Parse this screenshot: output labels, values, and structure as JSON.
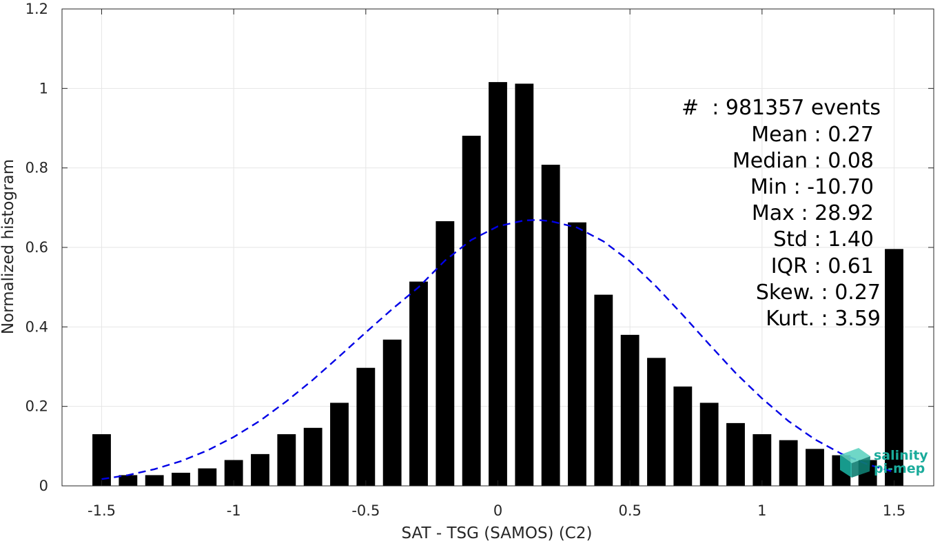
{
  "chart_data": {
    "type": "bar",
    "xlabel": "SAT - TSG (SAMOS) (C2)",
    "ylabel": "Normalized histogram",
    "xlim": [
      -1.65,
      1.65
    ],
    "ylim": [
      0,
      1.2
    ],
    "grid": true,
    "x_ticks": [
      -1.5,
      -1,
      -0.5,
      0,
      0.5,
      1,
      1.5
    ],
    "x_tick_labels": [
      "-1.5",
      "-1",
      "-0.5",
      "0",
      "0.5",
      "1",
      "1.5"
    ],
    "y_ticks": [
      0,
      0.2,
      0.4,
      0.6,
      0.8,
      1,
      1.2
    ],
    "y_tick_labels": [
      "0",
      "0.2",
      "0.4",
      "0.6",
      "0.8",
      "1",
      "1.2"
    ],
    "bar_width": 0.07,
    "categories": [
      -1.5,
      -1.4,
      -1.3,
      -1.2,
      -1.1,
      -1.0,
      -0.9,
      -0.8,
      -0.7,
      -0.6,
      -0.5,
      -0.4,
      -0.3,
      -0.2,
      -0.1,
      0.0,
      0.1,
      0.2,
      0.3,
      0.4,
      0.5,
      0.6,
      0.7,
      0.8,
      0.9,
      1.0,
      1.1,
      1.2,
      1.3,
      1.4,
      1.5
    ],
    "values": [
      0.13,
      0.027,
      0.027,
      0.033,
      0.044,
      0.065,
      0.08,
      0.13,
      0.146,
      0.209,
      0.297,
      0.368,
      0.514,
      0.666,
      0.881,
      1.016,
      1.012,
      0.808,
      0.663,
      0.481,
      0.38,
      0.322,
      0.25,
      0.209,
      0.158,
      0.13,
      0.115,
      0.093,
      0.077,
      0.065,
      0.596
    ],
    "bar_color": "#000000",
    "fit_line": {
      "style": "dashed",
      "color": "#0000e6",
      "x": [
        -1.5,
        -1.4,
        -1.3,
        -1.2,
        -1.1,
        -1.0,
        -0.9,
        -0.8,
        -0.7,
        -0.6,
        -0.5,
        -0.4,
        -0.3,
        -0.2,
        -0.1,
        0.0,
        0.1,
        0.15,
        0.2,
        0.3,
        0.4,
        0.5,
        0.6,
        0.7,
        0.8,
        0.9,
        1.0,
        1.1,
        1.2,
        1.3,
        1.4,
        1.5
      ],
      "y": [
        0.017,
        0.027,
        0.042,
        0.062,
        0.089,
        0.123,
        0.164,
        0.213,
        0.267,
        0.326,
        0.386,
        0.445,
        0.5,
        0.567,
        0.619,
        0.653,
        0.668,
        0.669,
        0.666,
        0.65,
        0.615,
        0.565,
        0.501,
        0.43,
        0.356,
        0.284,
        0.22,
        0.163,
        0.117,
        0.081,
        0.054,
        0.035
      ]
    },
    "stats": {
      "count": "#  : 981357 events",
      "mean": "Mean : 0.27",
      "median": "Median : 0.08",
      "min": "Min : -10.70",
      "max": "Max : 28.92",
      "std": "Std : 1.40",
      "iqr": "IQR : 0.61",
      "skew": "Skew. : 0.27",
      "kurt": "Kurt. : 3.59"
    },
    "logo": {
      "line1": "salinity",
      "line2": "pi-mep",
      "color": "#1aab9b"
    }
  }
}
